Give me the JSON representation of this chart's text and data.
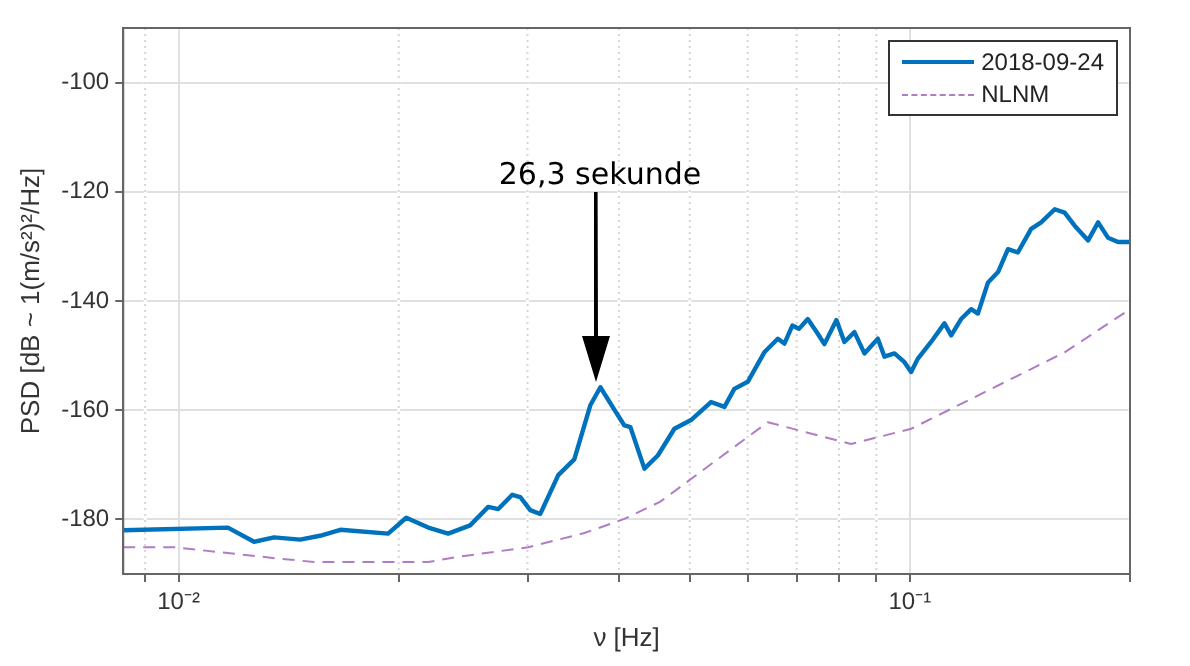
{
  "chart_data": {
    "type": "line",
    "xlabel": "ν [Hz]",
    "ylabel": "PSD [dB ~ 1(m/s²)²/Hz]",
    "log": "x",
    "grid": true,
    "legend": "top right",
    "marker": "none",
    "xlim": [
      0.0084,
      0.2
    ],
    "ylim": [
      -190,
      -90
    ],
    "xticks": [
      {
        "value": 0.009,
        "label": null
      },
      {
        "value": 0.01,
        "label": "10⁻²"
      },
      {
        "value": 0.02,
        "label": null
      },
      {
        "value": 0.03,
        "label": null
      },
      {
        "value": 0.04,
        "label": null
      },
      {
        "value": 0.05,
        "label": null
      },
      {
        "value": 0.06,
        "label": null
      },
      {
        "value": 0.07,
        "label": null
      },
      {
        "value": 0.08,
        "label": null
      },
      {
        "value": 0.09,
        "label": null
      },
      {
        "value": 0.1,
        "label": "10⁻¹"
      },
      {
        "value": 0.2,
        "label": null
      }
    ],
    "yticks": [
      -180,
      -160,
      -140,
      -120,
      -100
    ],
    "annotations": [
      "26,3 sekunde"
    ],
    "series": [
      {
        "name": "2018-09-24",
        "color": "#0072bd",
        "line_style": "solid",
        "x": [
          0.0084,
          0.01168,
          0.01268,
          0.01351,
          0.01466,
          0.01561,
          0.01664,
          0.01934,
          0.02048,
          0.02195,
          0.02337,
          0.02504,
          0.02651,
          0.02736,
          0.02859,
          0.02932,
          0.03026,
          0.03123,
          0.03305,
          0.03476,
          0.03656,
          0.03774,
          0.03943,
          0.0407,
          0.04148,
          0.04335,
          0.04522,
          0.04764,
          0.0502,
          0.05346,
          0.05577,
          0.05754,
          0.06002,
          0.06324,
          0.06598,
          0.06736,
          0.06907,
          0.07053,
          0.07251,
          0.07483,
          0.0764,
          0.07936,
          0.08137,
          0.08398,
          0.08667,
          0.0904,
          0.09231,
          0.09527,
          0.09831,
          0.1004,
          0.1025,
          0.1069,
          0.1115,
          0.1139,
          0.1175,
          0.1213,
          0.1239,
          0.1279,
          0.132,
          0.1362,
          0.1405,
          0.1465,
          0.1512,
          0.1578,
          0.1628,
          0.168,
          0.1753,
          0.1809,
          0.1866,
          0.1926,
          0.2
        ],
        "values": [
          -182,
          -181.5,
          -184.1,
          -183.3,
          -183.7,
          -183,
          -181.9,
          -182.6,
          -179.7,
          -181.5,
          -182.6,
          -181.1,
          -177.7,
          -178.1,
          -175.5,
          -175.9,
          -178.3,
          -179,
          -171.9,
          -169,
          -159.1,
          -155.8,
          -159.9,
          -162.8,
          -163.1,
          -170.7,
          -168.3,
          -163.4,
          -161.8,
          -158.5,
          -159.4,
          -156.1,
          -154.8,
          -149.4,
          -146.9,
          -147.8,
          -144.5,
          -145.1,
          -143.3,
          -146,
          -147.9,
          -143.5,
          -147.5,
          -145.7,
          -149.6,
          -146.9,
          -150.2,
          -149.6,
          -151.2,
          -153,
          -150.6,
          -147.5,
          -144.1,
          -146.3,
          -143.3,
          -141.5,
          -142.3,
          -136.6,
          -134.7,
          -130.5,
          -131.1,
          -126.8,
          -125.6,
          -123.2,
          -123.8,
          -126.2,
          -128.9,
          -125.6,
          -128.4,
          -129.2,
          -129.2
        ]
      },
      {
        "name": "NLNM",
        "color": "#b07cc6",
        "line_style": "dashed",
        "x": [
          0.0084,
          0.00986,
          0.01376,
          0.01532,
          0.02195,
          0.02427,
          0.03007,
          0.03587,
          0.0407,
          0.04552,
          0.06393,
          0.08309,
          0.1004,
          0.1628,
          0.2
        ],
        "values": [
          -185.1,
          -185.1,
          -187.2,
          -187.8,
          -187.8,
          -186.8,
          -185.1,
          -182.5,
          -179.9,
          -176.8,
          -162.2,
          -166.2,
          -163.4,
          -149.4,
          -141.5
        ]
      }
    ]
  }
}
